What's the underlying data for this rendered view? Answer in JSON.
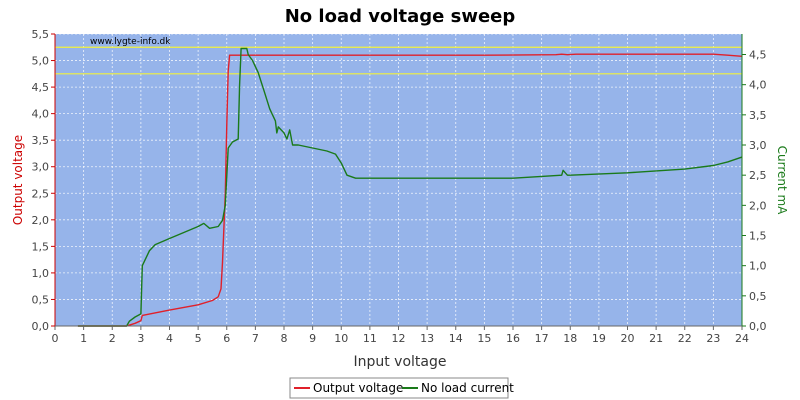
{
  "chart_data": {
    "type": "line",
    "title": "No load voltage sweep",
    "watermark": "www.lygte-info.dk",
    "xlabel": "Input voltage",
    "ylabel_left": "Output voltage",
    "ylabel_right": "Current mA",
    "xlim": [
      0,
      24
    ],
    "ylim_left": [
      0,
      5.5
    ],
    "ylim_right": [
      0,
      4.84
    ],
    "x_ticks": [
      "0",
      "1",
      "2",
      "3",
      "4",
      "5",
      "6",
      "7",
      "8",
      "9",
      "10",
      "11",
      "12",
      "13",
      "14",
      "15",
      "16",
      "17",
      "18",
      "19",
      "20",
      "21",
      "22",
      "23",
      "24"
    ],
    "y_left_ticks": [
      "0,0",
      "0,5",
      "1,0",
      "1,5",
      "2,0",
      "2,5",
      "3,0",
      "3,5",
      "4,0",
      "4,5",
      "5,0",
      "5,5"
    ],
    "y_right_ticks": [
      "0,0",
      "0,5",
      "1,0",
      "1,5",
      "2,0",
      "2,5",
      "3,0",
      "3,5",
      "4,0",
      "4,5"
    ],
    "grid": true,
    "reference_lines_left": [
      5.25,
      4.75
    ],
    "legend_position": "bottom",
    "colors": {
      "plot_bg": "#96b4ea",
      "output_voltage": "#e0202a",
      "no_load_current": "#1a7a1a",
      "reference": "#f2f23c",
      "left_axis": "#cc0000",
      "right_axis": "#1a7a1a"
    },
    "series": [
      {
        "name": "Output voltage",
        "axis": "left",
        "x": [
          0.8,
          2.5,
          2.8,
          3.0,
          3.05,
          4.0,
          5.0,
          5.5,
          5.7,
          5.8,
          5.85,
          5.95,
          6.0,
          6.05,
          6.1,
          7,
          10,
          15,
          17.5,
          17.7,
          17.9,
          18.2,
          20,
          22,
          23,
          23.5,
          24
        ],
        "y": [
          0.0,
          0.0,
          0.05,
          0.1,
          0.2,
          0.3,
          0.4,
          0.48,
          0.55,
          0.7,
          1.2,
          2.5,
          3.8,
          4.8,
          5.1,
          5.1,
          5.1,
          5.1,
          5.11,
          5.12,
          5.11,
          5.12,
          5.12,
          5.12,
          5.12,
          5.1,
          5.08
        ]
      },
      {
        "name": "No load current",
        "axis": "right",
        "x": [
          0.8,
          2.5,
          2.6,
          2.8,
          3.0,
          3.05,
          3.3,
          3.5,
          4.0,
          4.5,
          5.0,
          5.2,
          5.4,
          5.7,
          5.85,
          5.95,
          6.05,
          6.2,
          6.4,
          6.45,
          6.5,
          6.7,
          6.75,
          6.9,
          7.1,
          7.3,
          7.5,
          7.7,
          7.75,
          7.8,
          8.0,
          8.1,
          8.2,
          8.3,
          8.4,
          8.5,
          9.0,
          9.5,
          9.8,
          10.0,
          10.2,
          10.5,
          11,
          13,
          14,
          16,
          17,
          17.7,
          17.75,
          17.9,
          18,
          20,
          22,
          23,
          23.5,
          24
        ],
        "y": [
          0.0,
          0.0,
          0.08,
          0.15,
          0.2,
          1.0,
          1.25,
          1.35,
          1.45,
          1.55,
          1.65,
          1.7,
          1.62,
          1.65,
          1.75,
          2.0,
          2.95,
          3.05,
          3.1,
          4.0,
          4.6,
          4.6,
          4.5,
          4.4,
          4.2,
          3.9,
          3.6,
          3.4,
          3.2,
          3.3,
          3.2,
          3.1,
          3.25,
          3.0,
          3.0,
          3.0,
          2.95,
          2.9,
          2.85,
          2.7,
          2.5,
          2.45,
          2.45,
          2.45,
          2.45,
          2.45,
          2.48,
          2.5,
          2.58,
          2.5,
          2.5,
          2.54,
          2.6,
          2.66,
          2.72,
          2.8
        ]
      }
    ]
  }
}
